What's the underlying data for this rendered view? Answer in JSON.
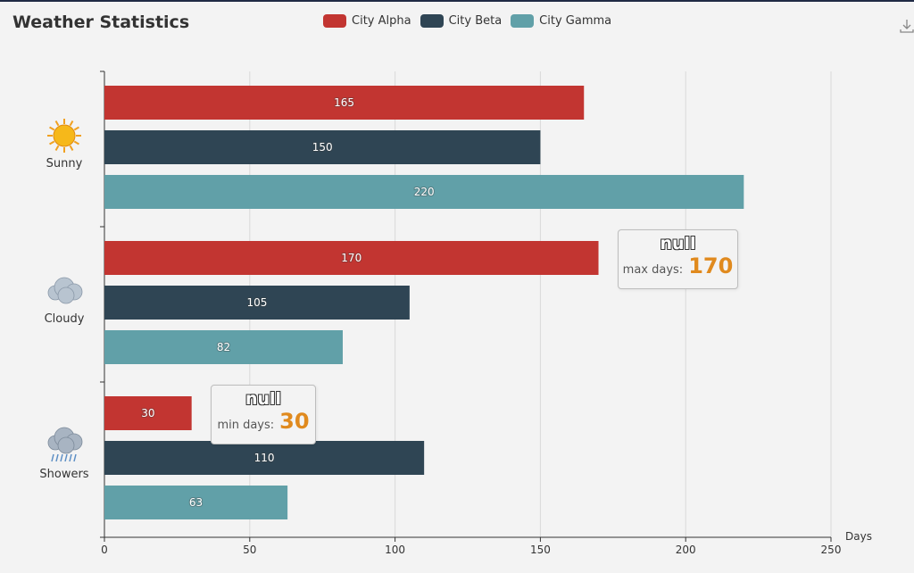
{
  "title": "Weather Statistics",
  "legend": [
    {
      "name": "City Alpha",
      "color": "#c23531"
    },
    {
      "name": "City Beta",
      "color": "#2f4554"
    },
    {
      "name": "City Gamma",
      "color": "#61a0a8"
    }
  ],
  "toolbar": {
    "download_icon": "download-icon"
  },
  "chart_data": {
    "type": "bar",
    "orientation": "horizontal",
    "title": "Weather Statistics",
    "xlabel": "Days",
    "ylabel": "",
    "xlim": [
      0,
      250
    ],
    "x_ticks": [
      "0",
      "50",
      "100",
      "150",
      "200",
      "250"
    ],
    "grid": true,
    "legend_position": "top",
    "categories": [
      "Sunny",
      "Cloudy",
      "Showers"
    ],
    "category_icons": [
      "sun-icon",
      "cloud-icon",
      "showers-icon"
    ],
    "series": [
      {
        "name": "City Alpha",
        "values": [
          165,
          170,
          30
        ]
      },
      {
        "name": "City Beta",
        "values": [
          150,
          105,
          110
        ]
      },
      {
        "name": "City Gamma",
        "values": [
          220,
          82,
          63
        ]
      }
    ],
    "annotations": [
      {
        "title": "null",
        "label": "max days:",
        "value": "170"
      },
      {
        "title": "null",
        "label": "min days:",
        "value": "30"
      }
    ]
  }
}
